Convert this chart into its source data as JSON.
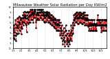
{
  "title": "Milwaukee Weather Solar Radiation per Day KW/m2",
  "title_fontsize": 3.8,
  "background_color": "#ffffff",
  "line_color": "#dd0000",
  "line_style": "--",
  "line_width": 0.6,
  "marker": "s",
  "marker_size": 0.8,
  "marker_color": "#000000",
  "grid_color": "#bbbbbb",
  "ylim": [
    0,
    8
  ],
  "ytick_fontsize": 3.0,
  "xtick_fontsize": 2.5,
  "values": [
    3.5,
    2.0,
    3.8,
    4.5,
    2.5,
    1.8,
    3.2,
    4.8,
    5.5,
    4.0,
    2.5,
    1.5,
    3.0,
    4.5,
    5.8,
    4.2,
    2.8,
    4.0,
    5.2,
    6.0,
    4.5,
    3.0,
    5.0,
    6.2,
    5.0,
    3.5,
    4.8,
    6.0,
    5.5,
    4.0,
    2.8,
    4.2,
    5.8,
    5.0,
    3.8,
    5.2,
    6.5,
    5.8,
    4.5,
    6.0,
    7.0,
    6.2,
    5.0,
    6.5,
    7.2,
    6.0,
    4.8,
    6.2,
    7.0,
    5.8,
    4.5,
    3.2,
    5.0,
    6.5,
    7.2,
    6.0,
    4.8,
    5.5,
    7.0,
    6.2,
    5.0,
    6.5,
    7.2,
    6.2,
    5.0,
    6.5,
    7.5,
    6.5,
    5.5,
    7.0,
    7.5,
    6.8,
    5.5,
    7.0,
    7.5,
    6.5,
    5.0,
    6.8,
    7.2,
    6.0,
    7.5,
    7.0,
    6.0,
    7.5,
    7.2,
    6.5,
    5.2,
    4.0,
    5.5,
    6.8,
    5.8,
    7.0,
    7.5,
    6.5,
    5.5,
    6.8,
    7.5,
    6.5,
    5.5,
    7.0,
    7.5,
    7.0,
    6.0,
    7.5,
    7.0,
    6.0,
    7.5,
    7.2,
    6.5,
    5.5,
    7.0,
    7.5,
    6.5,
    5.5,
    6.8,
    7.2,
    6.2,
    5.2,
    6.5,
    7.0,
    6.0,
    5.0,
    6.5,
    7.0,
    6.2,
    5.2,
    6.8,
    7.2,
    6.5,
    5.5,
    6.8,
    7.0,
    6.2,
    5.0,
    6.5,
    7.0,
    6.0,
    5.0,
    6.2,
    6.8,
    5.8,
    4.8,
    6.0,
    6.5,
    5.5,
    4.5,
    5.8,
    6.5,
    5.5,
    4.5,
    5.5,
    6.2,
    5.2,
    4.2,
    5.5,
    6.0,
    5.0,
    4.0,
    5.5,
    5.8,
    4.8,
    3.8,
    5.0,
    5.5,
    4.5,
    3.5,
    4.8,
    5.5,
    4.5,
    3.5,
    4.8,
    5.5,
    4.5,
    3.5,
    5.0,
    5.5,
    4.5,
    3.5,
    2.5,
    4.0,
    5.0,
    4.0,
    3.0,
    2.0,
    3.5,
    4.5,
    3.5,
    2.5,
    1.5,
    0.8,
    1.8,
    3.0,
    4.0,
    3.2,
    2.2,
    1.2,
    0.5,
    1.5,
    2.5,
    3.5,
    4.5,
    3.5,
    2.5,
    1.5,
    0.8,
    1.8,
    3.0,
    2.0,
    1.2,
    0.5,
    1.5,
    2.5,
    3.5,
    2.5,
    1.5,
    0.8,
    1.8,
    3.0,
    2.0,
    3.2,
    4.5,
    3.5,
    2.5,
    1.5,
    2.8,
    4.0,
    5.0,
    4.0,
    3.0,
    4.5,
    5.5,
    6.5,
    5.5,
    4.5,
    5.8,
    6.8,
    6.0,
    5.0,
    6.2,
    7.0,
    6.2,
    5.2,
    6.5,
    7.0,
    5.8,
    4.8,
    6.0,
    6.8,
    5.8,
    4.8,
    6.2,
    7.0,
    6.0,
    5.0,
    6.5,
    7.0,
    6.0,
    5.0,
    6.5,
    6.8,
    5.8,
    4.8,
    6.0,
    6.8,
    5.8,
    4.8,
    6.2,
    7.0,
    6.0,
    5.0,
    6.5,
    7.0,
    5.5,
    4.5,
    5.8,
    6.5,
    5.5,
    4.5,
    5.8,
    6.5,
    5.5,
    4.5,
    5.8,
    6.5,
    5.5,
    4.2,
    5.5,
    4.5,
    3.5,
    4.8,
    5.5,
    4.5,
    3.5,
    4.8,
    5.5,
    4.5,
    3.5,
    4.8,
    5.5,
    4.5,
    3.5,
    4.8,
    5.5,
    4.5,
    3.5,
    4.8,
    4.5,
    3.5,
    4.8,
    5.5,
    4.5,
    3.5,
    4.8,
    4.5,
    3.5,
    4.8,
    4.5,
    3.5,
    4.5,
    5.5,
    4.5,
    5.5,
    6.5,
    5.5,
    4.5,
    5.5,
    4.5,
    5.5,
    4.5,
    5.5,
    4.5,
    5.5,
    4.5,
    5.0,
    4.0,
    3.2,
    4.5,
    5.5,
    4.5,
    3.5,
    4.5,
    5.5,
    4.5,
    3.5,
    4.5,
    5.5,
    4.5,
    3.5,
    4.5,
    5.5,
    4.5,
    5.5,
    4.5,
    3.5,
    4.5,
    5.5,
    4.5
  ],
  "x_tick_positions": [
    0,
    30,
    60,
    91,
    121,
    151,
    182,
    212,
    243,
    273,
    304,
    334
  ],
  "x_tick_labels": [
    "1/1",
    "2/1",
    "3/1",
    "4/1",
    "5/1",
    "6/1",
    "7/1",
    "8/1",
    "9/1",
    "10/1",
    "11/1",
    "12/1"
  ],
  "y_ticks": [
    0,
    1,
    2,
    3,
    4,
    5,
    6,
    7,
    8
  ],
  "y_tick_labels": [
    "0.",
    "1.",
    "2.",
    "3.",
    "4.",
    "5.",
    "6.",
    "7.",
    "8."
  ],
  "vgrid_positions": [
    30,
    60,
    91,
    121,
    151,
    182,
    212,
    243,
    273,
    304,
    334
  ]
}
